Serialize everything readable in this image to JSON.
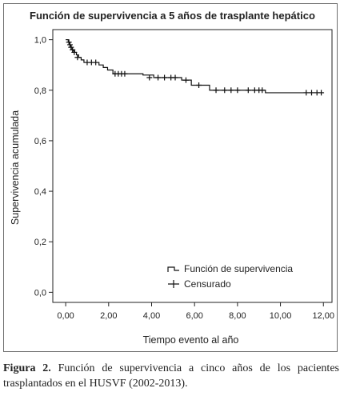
{
  "chart_data": {
    "type": "line",
    "step": true,
    "title": "Función de supervivencia a 5 años de trasplante hepático",
    "xlabel": "Tiempo evento al año",
    "ylabel": "Supervivencia acumulada",
    "xlim": [
      -0.6,
      12.4
    ],
    "ylim": [
      -0.04,
      1.04
    ],
    "xticks": [
      "0,00",
      "2,00",
      "4,00",
      "6,00",
      "8,00",
      "10,00",
      "12,00"
    ],
    "xtick_values": [
      0,
      2,
      4,
      6,
      8,
      10,
      12
    ],
    "yticks": [
      "0,0",
      "0,2",
      "0,4",
      "0,6",
      "0,8",
      "1,0"
    ],
    "ytick_values": [
      0,
      0.2,
      0.4,
      0.6,
      0.8,
      1.0
    ],
    "grid": false,
    "legend_position": "bottom-right",
    "series": [
      {
        "name": "Función de supervivencia",
        "x": [
          0,
          0.12,
          0.18,
          0.22,
          0.26,
          0.3,
          0.36,
          0.42,
          0.5,
          0.6,
          0.72,
          0.85,
          1.55,
          1.75,
          1.95,
          2.2,
          3.6,
          4.1,
          5.4,
          5.85,
          6.7,
          9.0,
          9.3,
          12.0
        ],
        "y": [
          1.0,
          0.99,
          0.98,
          0.975,
          0.97,
          0.96,
          0.955,
          0.95,
          0.94,
          0.93,
          0.92,
          0.91,
          0.9,
          0.89,
          0.88,
          0.865,
          0.86,
          0.85,
          0.84,
          0.82,
          0.8,
          0.8,
          0.79,
          0.79
        ]
      },
      {
        "name": "Censurado",
        "x": [
          0.15,
          0.2,
          0.25,
          0.32,
          0.4,
          0.55,
          1.0,
          1.2,
          1.4,
          2.3,
          2.45,
          2.6,
          2.75,
          3.9,
          4.3,
          4.6,
          4.9,
          5.1,
          5.6,
          6.2,
          7.0,
          7.4,
          7.7,
          8.0,
          8.5,
          8.8,
          9.0,
          9.15,
          11.2,
          11.45,
          11.7,
          11.9
        ],
        "y": [
          0.99,
          0.98,
          0.97,
          0.96,
          0.95,
          0.93,
          0.91,
          0.91,
          0.91,
          0.865,
          0.865,
          0.865,
          0.865,
          0.85,
          0.85,
          0.85,
          0.85,
          0.85,
          0.84,
          0.82,
          0.8,
          0.8,
          0.8,
          0.8,
          0.8,
          0.8,
          0.8,
          0.8,
          0.79,
          0.79,
          0.79,
          0.79
        ]
      }
    ]
  },
  "caption": {
    "label": "Figura 2.",
    "text": " Función de supervivencia a cinco años de los pacientes trasplantados en el HUSVF (2002-2013)."
  }
}
